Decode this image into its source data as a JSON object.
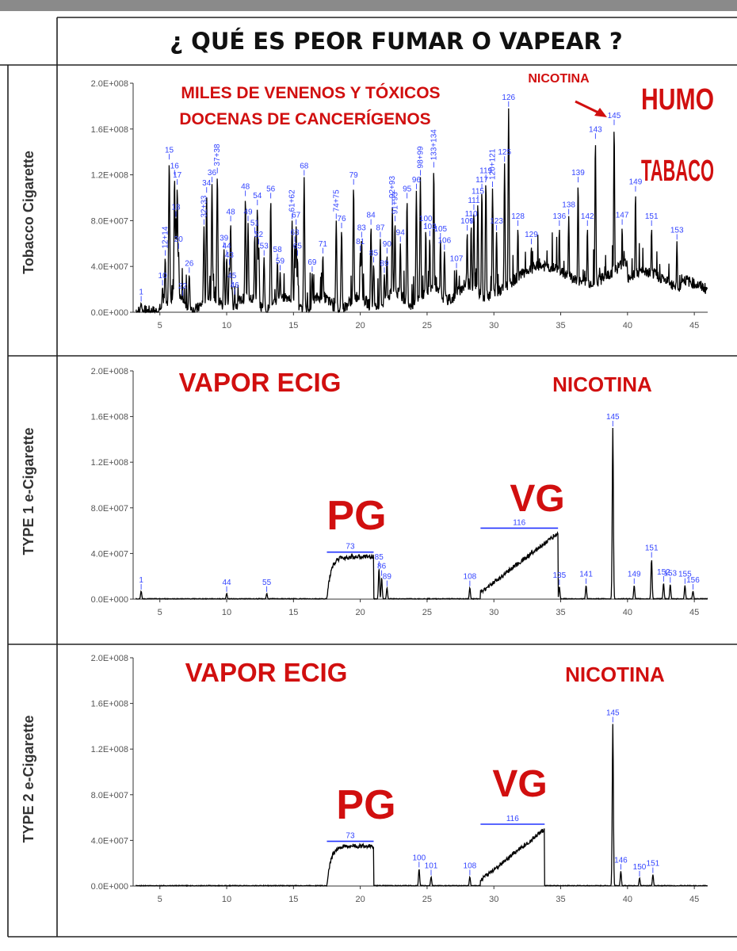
{
  "title": "¿ QUÉ ES PEOR FUMAR O VAPEAR ?",
  "chart_data": [
    {
      "type": "line",
      "ylabel": "Tobacco Cigarette",
      "ytick_labels": [
        "0.0E+000",
        "4.0E+007",
        "8.0E+007",
        "1.2E+008",
        "1.6E+008",
        "2.0E+008"
      ],
      "xtick_labels": [
        "5",
        "10",
        "15",
        "20",
        "25",
        "30",
        "35",
        "40",
        "45"
      ],
      "xlim": [
        3,
        46
      ],
      "ylim": [
        0,
        200000000
      ],
      "annotations": [
        "MILES DE VENENOS Y TÓXICOS",
        "DOCENAS DE CANCERÍGENOS",
        "NICOTINA",
        "HUMO",
        "TABACO"
      ],
      "peaks": [
        {
          "label": "1",
          "x": 3.6,
          "y": 8000000
        },
        {
          "label": "10",
          "x": 5.2,
          "y": 22000000
        },
        {
          "label": "12+14",
          "x": 5.4,
          "y": 48000000
        },
        {
          "label": "15",
          "x": 5.7,
          "y": 132000000
        },
        {
          "label": "16",
          "x": 6.1,
          "y": 118000000
        },
        {
          "label": "17",
          "x": 6.3,
          "y": 110000000
        },
        {
          "label": "18",
          "x": 6.2,
          "y": 82000000
        },
        {
          "label": "20",
          "x": 6.4,
          "y": 54000000
        },
        {
          "label": "22",
          "x": 6.7,
          "y": 13000000
        },
        {
          "label": "26",
          "x": 7.2,
          "y": 33000000
        },
        {
          "label": "32+33",
          "x": 8.3,
          "y": 75000000
        },
        {
          "label": "34",
          "x": 8.5,
          "y": 103000000
        },
        {
          "label": "36",
          "x": 8.9,
          "y": 112000000
        },
        {
          "label": "37+38",
          "x": 9.3,
          "y": 120000000
        },
        {
          "label": "39",
          "x": 9.8,
          "y": 55000000
        },
        {
          "label": "43",
          "x": 10.2,
          "y": 40000000
        },
        {
          "label": "44",
          "x": 10.0,
          "y": 48000000
        },
        {
          "label": "45",
          "x": 10.4,
          "y": 22000000
        },
        {
          "label": "46",
          "x": 10.6,
          "y": 14000000
        },
        {
          "label": "48",
          "x": 10.3,
          "y": 78000000
        },
        {
          "label": "49",
          "x": 11.6,
          "y": 78000000
        },
        {
          "label": "48",
          "x": 11.4,
          "y": 100000000
        },
        {
          "label": "51",
          "x": 12.1,
          "y": 68000000
        },
        {
          "label": "52",
          "x": 12.4,
          "y": 58000000
        },
        {
          "label": "53",
          "x": 12.8,
          "y": 48000000
        },
        {
          "label": "54",
          "x": 12.3,
          "y": 92000000
        },
        {
          "label": "56",
          "x": 13.3,
          "y": 98000000
        },
        {
          "label": "58",
          "x": 13.8,
          "y": 45000000
        },
        {
          "label": "59",
          "x": 14.0,
          "y": 35000000
        },
        {
          "label": "61+62",
          "x": 14.9,
          "y": 80000000
        },
        {
          "label": "63",
          "x": 15.1,
          "y": 60000000
        },
        {
          "label": "65",
          "x": 15.3,
          "y": 48000000
        },
        {
          "label": "67",
          "x": 15.2,
          "y": 75000000
        },
        {
          "label": "68",
          "x": 15.8,
          "y": 118000000
        },
        {
          "label": "69",
          "x": 16.4,
          "y": 34000000
        },
        {
          "label": "71",
          "x": 17.2,
          "y": 50000000
        },
        {
          "label": "74+75",
          "x": 18.2,
          "y": 80000000
        },
        {
          "label": "76",
          "x": 18.6,
          "y": 72000000
        },
        {
          "label": "79",
          "x": 19.5,
          "y": 110000000
        },
        {
          "label": "81",
          "x": 20.0,
          "y": 52000000
        },
        {
          "label": "83",
          "x": 20.1,
          "y": 64000000
        },
        {
          "label": "84",
          "x": 20.8,
          "y": 75000000
        },
        {
          "label": "85",
          "x": 21.0,
          "y": 42000000
        },
        {
          "label": "87",
          "x": 21.5,
          "y": 64000000
        },
        {
          "label": "89",
          "x": 21.8,
          "y": 33000000
        },
        {
          "label": "90",
          "x": 22.0,
          "y": 50000000
        },
        {
          "label": "91+93",
          "x": 22.6,
          "y": 78000000
        },
        {
          "label": "92+93",
          "x": 22.4,
          "y": 92000000
        },
        {
          "label": "94",
          "x": 23.0,
          "y": 60000000
        },
        {
          "label": "95",
          "x": 23.5,
          "y": 98000000
        },
        {
          "label": "96",
          "x": 24.2,
          "y": 106000000
        },
        {
          "label": "98+99",
          "x": 24.5,
          "y": 118000000
        },
        {
          "label": "100",
          "x": 24.9,
          "y": 72000000
        },
        {
          "label": "103",
          "x": 25.2,
          "y": 65000000
        },
        {
          "label": "133+134",
          "x": 25.5,
          "y": 125000000
        },
        {
          "label": "105",
          "x": 26.0,
          "y": 63000000
        },
        {
          "label": "106",
          "x": 26.3,
          "y": 53000000
        },
        {
          "label": "107",
          "x": 27.2,
          "y": 37000000
        },
        {
          "label": "109",
          "x": 28.0,
          "y": 70000000
        },
        {
          "label": "110",
          "x": 28.3,
          "y": 76000000
        },
        {
          "label": "111",
          "x": 28.5,
          "y": 88000000
        },
        {
          "label": "115",
          "x": 28.8,
          "y": 96000000
        },
        {
          "label": "117",
          "x": 29.1,
          "y": 106000000
        },
        {
          "label": "119",
          "x": 29.4,
          "y": 114000000
        },
        {
          "label": "120+121",
          "x": 29.9,
          "y": 108000000
        },
        {
          "label": "123",
          "x": 30.2,
          "y": 70000000
        },
        {
          "label": "125",
          "x": 30.8,
          "y": 130000000
        },
        {
          "label": "126",
          "x": 31.1,
          "y": 178000000
        },
        {
          "label": "128",
          "x": 31.8,
          "y": 74000000
        },
        {
          "label": "129",
          "x": 32.8,
          "y": 58000000
        },
        {
          "label": "136",
          "x": 34.9,
          "y": 74000000
        },
        {
          "label": "138",
          "x": 35.6,
          "y": 84000000
        },
        {
          "label": "139",
          "x": 36.3,
          "y": 112000000
        },
        {
          "label": "142",
          "x": 37.0,
          "y": 74000000
        },
        {
          "label": "143",
          "x": 37.6,
          "y": 150000000
        },
        {
          "label": "145",
          "x": 39.0,
          "y": 162000000
        },
        {
          "label": "147",
          "x": 39.6,
          "y": 75000000
        },
        {
          "label": "149",
          "x": 40.6,
          "y": 104000000
        },
        {
          "label": "151",
          "x": 41.8,
          "y": 74000000
        },
        {
          "label": "153",
          "x": 43.7,
          "y": 62000000
        }
      ]
    },
    {
      "type": "line",
      "ylabel": "TYPE 1 e-Cigarette",
      "ytick_labels": [
        "0.0E+000",
        "4.0E+007",
        "8.0E+007",
        "1.2E+008",
        "1.6E+008",
        "2.0E+008"
      ],
      "xtick_labels": [
        "5",
        "10",
        "15",
        "20",
        "25",
        "30",
        "35",
        "40",
        "45"
      ],
      "xlim": [
        3,
        46
      ],
      "ylim": [
        0,
        200000000
      ],
      "annotations": [
        "VAPOR ECIG",
        "NICOTINA",
        "PG",
        "VG"
      ],
      "bands": [
        {
          "label": "73",
          "x1": 17.5,
          "x2": 21.0,
          "y_top": 37000000
        },
        {
          "label": "116",
          "x1": 29.0,
          "x2": 34.8,
          "y_top": 58000000
        }
      ],
      "peaks": [
        {
          "label": "1",
          "x": 3.6,
          "y": 7000000
        },
        {
          "label": "44",
          "x": 10.0,
          "y": 5000000
        },
        {
          "label": "55",
          "x": 13.0,
          "y": 5000000
        },
        {
          "label": "85",
          "x": 21.4,
          "y": 27000000
        },
        {
          "label": "86",
          "x": 21.6,
          "y": 19000000
        },
        {
          "label": "89",
          "x": 22.0,
          "y": 10000000
        },
        {
          "label": "108",
          "x": 28.2,
          "y": 10000000
        },
        {
          "label": "135",
          "x": 34.9,
          "y": 11000000
        },
        {
          "label": "141",
          "x": 36.9,
          "y": 12000000
        },
        {
          "label": "145",
          "x": 38.9,
          "y": 150000000
        },
        {
          "label": "149",
          "x": 40.5,
          "y": 12000000
        },
        {
          "label": "151",
          "x": 41.8,
          "y": 35000000
        },
        {
          "label": "152",
          "x": 42.7,
          "y": 14000000
        },
        {
          "label": "153",
          "x": 43.2,
          "y": 13000000
        },
        {
          "label": "155",
          "x": 44.3,
          "y": 12000000
        },
        {
          "label": "156",
          "x": 44.9,
          "y": 7000000
        }
      ]
    },
    {
      "type": "line",
      "ylabel": "TYPE 2 e-Cigarette",
      "ytick_labels": [
        "0.0E+000",
        "4.0E+007",
        "8.0E+007",
        "1.2E+008",
        "1.6E+008",
        "2.0E+008"
      ],
      "xtick_labels": [
        "5",
        "10",
        "15",
        "20",
        "25",
        "30",
        "35",
        "40",
        "45"
      ],
      "xlim": [
        3,
        46
      ],
      "ylim": [
        0,
        200000000
      ],
      "annotations": [
        "VAPOR ECIG",
        "NICOTINA",
        "PG",
        "VG"
      ],
      "bands": [
        {
          "label": "73",
          "x1": 17.5,
          "x2": 21.0,
          "y_top": 35000000
        },
        {
          "label": "116",
          "x1": 29.0,
          "x2": 33.8,
          "y_top": 50000000
        }
      ],
      "peaks": [
        {
          "label": "100",
          "x": 24.4,
          "y": 15000000
        },
        {
          "label": "101",
          "x": 25.3,
          "y": 8000000
        },
        {
          "label": "108",
          "x": 28.2,
          "y": 8000000
        },
        {
          "label": "145",
          "x": 38.9,
          "y": 142000000
        },
        {
          "label": "146",
          "x": 39.5,
          "y": 13000000
        },
        {
          "label": "150",
          "x": 40.9,
          "y": 7000000
        },
        {
          "label": "151",
          "x": 41.9,
          "y": 10000000
        }
      ]
    }
  ]
}
